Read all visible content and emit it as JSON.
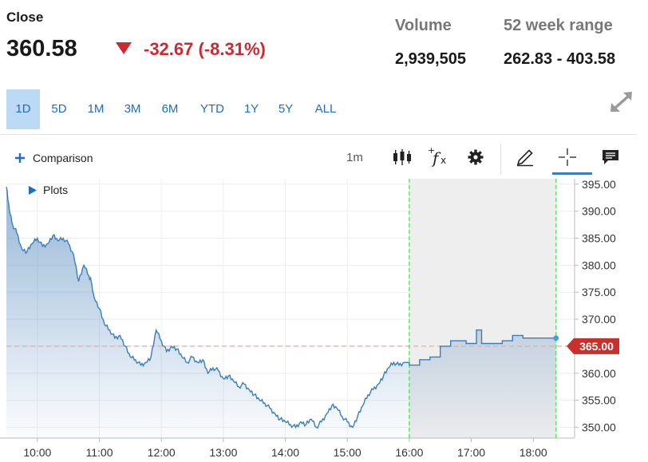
{
  "header": {
    "close_label": "Close",
    "close_value": "360.58",
    "change": "-32.67 (-8.31%)",
    "volume_label": "Volume",
    "volume_value": "2,939,505",
    "range_label": "52 week range",
    "range_value": "262.83 - 403.58"
  },
  "ranges": [
    "1D",
    "5D",
    "1M",
    "3M",
    "6M",
    "YTD",
    "1Y",
    "5Y",
    "ALL"
  ],
  "active_range": "1D",
  "toolbar": {
    "comparison_label": "Comparison",
    "interval_label": "1m",
    "plots_label": "Plots"
  },
  "icons": [
    "expand-icon",
    "plus-icon",
    "candlestick-icon",
    "fx-icon",
    "gear-icon",
    "pencil-icon",
    "crosshair-icon",
    "comment-icon",
    "triangle-right-icon",
    "triangle-down-icon"
  ],
  "colors": {
    "line": "#3a7dbd",
    "negative": "#d0282f",
    "active_range_bg": "#bcd9f5",
    "accent": "#1e6dc0",
    "after_hours_shade": "#eeeeee",
    "session_marker": "#55dd55",
    "price_tag": "#c9302c"
  },
  "chart_data": {
    "type": "area",
    "x_ticks": [
      "10:00",
      "11:00",
      "12:00",
      "13:00",
      "14:00",
      "15:00",
      "16:00",
      "17:00",
      "18:00"
    ],
    "y_ticks": [
      "350.00",
      "355.00",
      "360.00",
      "365.00",
      "370.00",
      "375.00",
      "380.00",
      "385.00",
      "390.00",
      "395.00"
    ],
    "ylim": [
      348,
      396
    ],
    "x_range": [
      "09:30",
      "18:40"
    ],
    "grid": true,
    "session_end": "16:00",
    "last_point_time": "18:22",
    "current_price_label": "365.00",
    "reference_line": 365.0,
    "series": [
      {
        "x": [
          "09:30",
          "09:33",
          "09:36",
          "09:40",
          "09:45",
          "09:50",
          "09:55",
          "10:00",
          "10:05",
          "10:10",
          "10:15",
          "10:20",
          "10:25",
          "10:30",
          "10:35",
          "10:40",
          "10:45",
          "10:50",
          "10:52",
          "10:55",
          "11:00",
          "11:05",
          "11:10",
          "11:15",
          "11:20",
          "11:25",
          "11:30",
          "11:35",
          "11:40",
          "11:45",
          "11:50",
          "11:55",
          "12:00",
          "12:05",
          "12:10",
          "12:15",
          "12:20",
          "12:25",
          "12:30",
          "12:35",
          "12:40",
          "12:45",
          "12:50",
          "12:55",
          "13:00",
          "13:05",
          "13:10",
          "13:15",
          "13:20",
          "13:25",
          "13:30",
          "13:35",
          "13:40",
          "13:45",
          "13:50",
          "13:55",
          "14:00",
          "14:05",
          "14:10",
          "14:15",
          "14:20",
          "14:25",
          "14:30",
          "14:35",
          "14:40",
          "14:45",
          "14:50",
          "14:55",
          "15:00",
          "15:05",
          "15:10",
          "15:15",
          "15:20",
          "15:25",
          "15:30",
          "15:35",
          "15:40",
          "15:45",
          "15:50",
          "15:55",
          "16:00",
          "16:10",
          "16:20",
          "16:30",
          "16:40",
          "16:50",
          "16:55",
          "17:00",
          "17:05",
          "17:10",
          "17:20",
          "17:30",
          "17:35",
          "17:40",
          "17:45",
          "17:50",
          "18:00",
          "18:10",
          "18:22"
        ],
        "y": [
          394.5,
          390,
          387.5,
          386,
          383,
          382.5,
          384,
          385,
          383.5,
          384,
          385.5,
          384.5,
          385,
          384,
          382,
          377,
          380,
          378,
          377,
          374,
          372,
          369,
          368,
          366.5,
          367,
          365,
          363,
          362.5,
          361.5,
          362,
          363,
          368,
          366,
          364,
          365,
          364.5,
          363,
          362,
          363,
          362,
          362.5,
          360,
          361,
          360.5,
          359,
          359.5,
          358.5,
          357.5,
          358,
          357,
          356,
          355,
          354.5,
          353.5,
          352.5,
          351.5,
          351,
          350.5,
          350,
          351,
          350.5,
          351.5,
          350,
          351,
          352.5,
          354,
          353.5,
          352,
          351,
          350,
          352,
          354,
          356,
          357,
          358,
          359.5,
          361,
          362,
          361.5,
          362,
          361.5,
          362.5,
          363,
          365,
          366,
          366,
          365.5,
          365.5,
          368,
          365.5,
          365.5,
          366,
          366,
          367,
          367,
          366.5,
          366.5,
          366.5,
          366.5
        ]
      }
    ]
  }
}
